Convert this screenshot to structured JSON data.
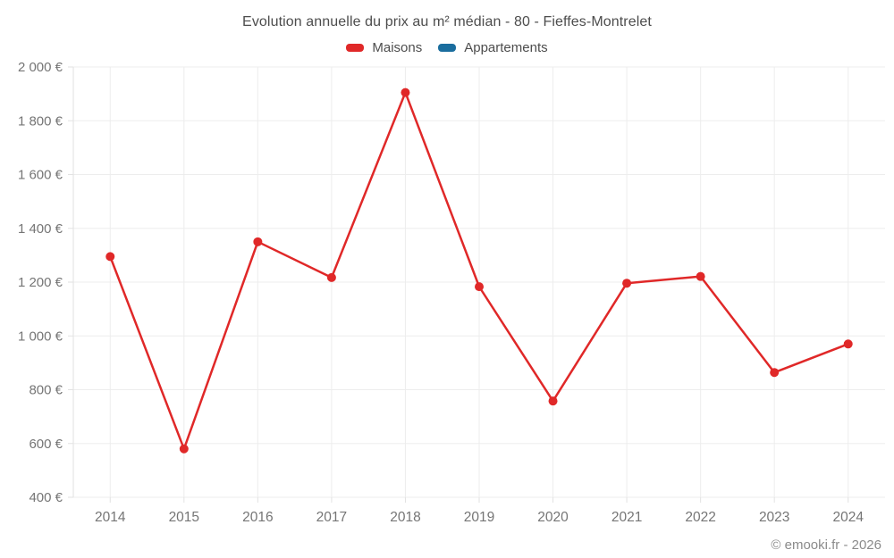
{
  "page": {
    "title": "Evolution annuelle du prix au m² médian - 80 - Fieffes-Montrelet",
    "watermark": "© emooki.fr - 2026"
  },
  "legend": {
    "items": [
      {
        "label": "Maisons",
        "color": "#e02828"
      },
      {
        "label": "Appartements",
        "color": "#1a6d9e"
      }
    ]
  },
  "chart_data": {
    "type": "line",
    "title": "Evolution annuelle du prix au m² médian - 80 - Fieffes-Montrelet",
    "categories": [
      "2014",
      "2015",
      "2016",
      "2017",
      "2018",
      "2019",
      "2020",
      "2021",
      "2022",
      "2023",
      "2024"
    ],
    "series": [
      {
        "name": "Maisons",
        "color": "#e02828",
        "values": [
          1295,
          580,
          1350,
          1217,
          1905,
          1183,
          758,
          1196,
          1221,
          864,
          970
        ]
      },
      {
        "name": "Appartements",
        "color": "#1a6d9e",
        "values": []
      }
    ],
    "xlabel": "",
    "ylabel": "",
    "ylim": [
      400,
      2000
    ],
    "ytick_step": 200,
    "ytick_suffix": " €",
    "grid": true,
    "legend_position": "top",
    "style": {
      "grid_color": "#ededed",
      "axis_color": "#e2e2e2",
      "tick_text_color": "#757575",
      "point_radius": 5,
      "line_width": 2.5
    }
  }
}
